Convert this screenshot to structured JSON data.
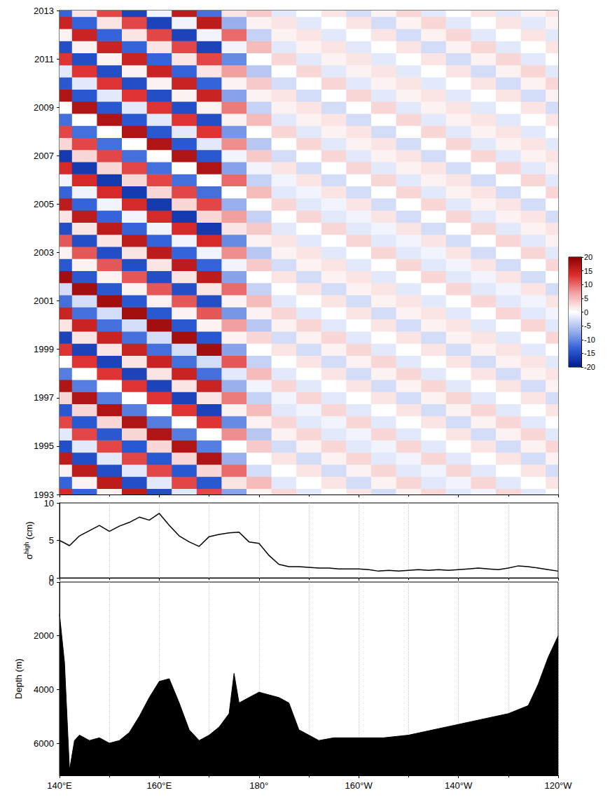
{
  "chart_data": [
    {
      "type": "heatmap",
      "x": [
        140,
        145,
        150,
        155,
        160,
        165,
        170,
        175,
        180,
        185,
        190,
        195,
        200,
        205,
        210,
        215,
        220,
        225,
        230,
        235,
        240
      ],
      "y": [
        1993,
        1993.5,
        1994,
        1994.5,
        1995,
        1995.5,
        1996,
        1996.5,
        1997,
        1997.5,
        1998,
        1998.5,
        1999,
        1999.5,
        2000,
        2000.5,
        2001,
        2001.5,
        2002,
        2002.5,
        2003,
        2003.5,
        2004,
        2004.5,
        2005,
        2005.5,
        2006,
        2006.5,
        2007,
        2007.5,
        2008,
        2008.5,
        2009,
        2009.5,
        2010,
        2010.5,
        2011,
        2011.5,
        2012,
        2012.5,
        2013
      ],
      "values": [
        [
          14,
          -13,
          1,
          16,
          -15,
          -2,
          12,
          -8,
          1,
          3,
          -2,
          0,
          2,
          -3,
          1,
          3,
          -2,
          -1,
          3,
          -2,
          0
        ],
        [
          -13,
          1,
          16,
          -15,
          -2,
          12,
          -14,
          2,
          5,
          -2,
          0,
          2,
          -3,
          1,
          3,
          -2,
          -1,
          3,
          -2,
          0,
          2
        ],
        [
          1,
          16,
          -15,
          -2,
          12,
          -14,
          3,
          10,
          -3,
          0,
          2,
          -3,
          1,
          3,
          -2,
          -1,
          3,
          -2,
          0,
          2,
          -3
        ],
        [
          16,
          -15,
          -2,
          12,
          -14,
          3,
          17,
          -7,
          0,
          2,
          -3,
          1,
          3,
          -2,
          -1,
          3,
          -2,
          0,
          2,
          -3,
          1
        ],
        [
          -15,
          -2,
          12,
          -14,
          3,
          17,
          -11,
          0,
          4,
          -3,
          1,
          3,
          -2,
          -1,
          3,
          -2,
          0,
          2,
          -3,
          1,
          3
        ],
        [
          -2,
          12,
          -14,
          3,
          17,
          -11,
          0,
          8,
          -5,
          1,
          3,
          -2,
          -1,
          3,
          -2,
          0,
          2,
          -3,
          1,
          3,
          -2
        ],
        [
          12,
          -14,
          3,
          17,
          -11,
          0,
          13,
          -10,
          1,
          3,
          -2,
          -1,
          3,
          -2,
          0,
          2,
          -3,
          1,
          3,
          -2,
          0
        ],
        [
          -14,
          3,
          17,
          -11,
          0,
          13,
          -16,
          1,
          5,
          -2,
          -1,
          3,
          -2,
          0,
          2,
          -3,
          1,
          3,
          -2,
          0,
          2
        ],
        [
          3,
          17,
          -11,
          0,
          13,
          -16,
          2,
          9,
          -4,
          -1,
          3,
          -2,
          0,
          2,
          -3,
          1,
          3,
          -2,
          0,
          2,
          -3
        ],
        [
          17,
          -11,
          0,
          13,
          -16,
          2,
          15,
          -7,
          -1,
          3,
          -2,
          0,
          2,
          -3,
          1,
          3,
          -2,
          0,
          2,
          -3,
          1
        ],
        [
          -11,
          0,
          13,
          -16,
          2,
          15,
          -12,
          -2,
          5,
          -2,
          0,
          2,
          -3,
          1,
          3,
          -2,
          0,
          2,
          -3,
          1,
          2
        ],
        [
          0,
          13,
          -16,
          2,
          15,
          -12,
          -3,
          11,
          -4,
          0,
          2,
          -3,
          1,
          3,
          -2,
          0,
          2,
          -3,
          1,
          2,
          -2
        ],
        [
          13,
          -16,
          2,
          15,
          -12,
          -3,
          18,
          -8,
          0,
          2,
          -3,
          1,
          3,
          -2,
          0,
          2,
          -3,
          1,
          2,
          -2,
          0
        ],
        [
          -16,
          2,
          15,
          -12,
          -3,
          18,
          -14,
          1,
          3,
          -3,
          1,
          3,
          -2,
          0,
          2,
          -3,
          1,
          2,
          -2,
          0,
          3
        ],
        [
          2,
          15,
          -12,
          -3,
          18,
          -14,
          1,
          7,
          -5,
          1,
          3,
          -2,
          0,
          2,
          -3,
          1,
          2,
          -2,
          0,
          3,
          -2
        ],
        [
          15,
          -12,
          -3,
          18,
          -14,
          1,
          11,
          -9,
          1,
          3,
          -2,
          0,
          2,
          -3,
          1,
          2,
          -2,
          0,
          3,
          -2,
          -1
        ],
        [
          -12,
          -3,
          18,
          -14,
          1,
          11,
          -15,
          1,
          5,
          -2,
          0,
          2,
          -3,
          1,
          2,
          -2,
          0,
          3,
          -2,
          -1,
          2
        ],
        [
          -3,
          18,
          -14,
          1,
          11,
          -15,
          2,
          10,
          -4,
          0,
          2,
          -3,
          1,
          2,
          -2,
          0,
          3,
          -2,
          -1,
          2,
          -3
        ],
        [
          18,
          -14,
          1,
          11,
          -15,
          2,
          16,
          -8,
          0,
          2,
          -3,
          1,
          2,
          -2,
          0,
          3,
          -2,
          -1,
          2,
          -3,
          0
        ],
        [
          -14,
          1,
          11,
          -15,
          2,
          16,
          -13,
          -1,
          4,
          -3,
          1,
          2,
          -2,
          0,
          3,
          -2,
          -1,
          2,
          -3,
          0,
          3
        ],
        [
          1,
          11,
          -15,
          2,
          16,
          -13,
          -1,
          8,
          -5,
          1,
          2,
          -2,
          0,
          3,
          -2,
          -1,
          2,
          -3,
          0,
          3,
          -2
        ],
        [
          11,
          -15,
          2,
          16,
          -13,
          -1,
          14,
          -10,
          1,
          2,
          -2,
          0,
          3,
          -2,
          -1,
          2,
          -3,
          0,
          3,
          -2,
          1
        ],
        [
          -15,
          2,
          16,
          -13,
          -1,
          14,
          -17,
          2,
          4,
          -2,
          0,
          3,
          -2,
          -1,
          2,
          -3,
          0,
          3,
          -2,
          1,
          2
        ],
        [
          2,
          16,
          -13,
          -1,
          14,
          -17,
          3,
          7,
          -4,
          0,
          3,
          -2,
          -1,
          2,
          -3,
          0,
          3,
          -2,
          1,
          2,
          -3
        ],
        [
          16,
          -13,
          -1,
          14,
          -17,
          3,
          12,
          -7,
          0,
          3,
          -2,
          -1,
          2,
          -3,
          0,
          3,
          -2,
          1,
          2,
          -3,
          0
        ],
        [
          -13,
          -1,
          14,
          -17,
          3,
          12,
          -12,
          0,
          5,
          -2,
          -1,
          2,
          -3,
          0,
          3,
          -2,
          1,
          2,
          -3,
          0,
          3
        ],
        [
          -1,
          14,
          -17,
          3,
          12,
          -12,
          0,
          10,
          -4,
          -1,
          2,
          -3,
          0,
          3,
          -2,
          1,
          2,
          -3,
          0,
          3,
          -2
        ],
        [
          14,
          -17,
          3,
          12,
          -12,
          0,
          17,
          -8,
          -1,
          2,
          -3,
          0,
          3,
          -2,
          1,
          2,
          -3,
          0,
          3,
          -2,
          1
        ],
        [
          -17,
          3,
          12,
          -12,
          0,
          17,
          -14,
          -1,
          4,
          -3,
          0,
          3,
          -2,
          1,
          2,
          -3,
          0,
          3,
          -2,
          1,
          2
        ],
        [
          3,
          12,
          -12,
          0,
          17,
          -14,
          -2,
          8,
          -5,
          0,
          3,
          -2,
          1,
          2,
          -3,
          0,
          3,
          -2,
          1,
          2,
          -2
        ],
        [
          12,
          -12,
          0,
          17,
          -14,
          -2,
          13,
          -9,
          0,
          3,
          -2,
          1,
          2,
          -3,
          0,
          3,
          -2,
          1,
          2,
          -2,
          0
        ],
        [
          -12,
          0,
          17,
          -14,
          -2,
          13,
          -15,
          1,
          5,
          -2,
          1,
          2,
          -3,
          0,
          3,
          -2,
          1,
          2,
          -2,
          0,
          2
        ],
        [
          0,
          17,
          -14,
          -2,
          13,
          -15,
          1,
          9,
          -4,
          1,
          2,
          -3,
          0,
          3,
          -2,
          1,
          2,
          -2,
          0,
          2,
          -3
        ],
        [
          17,
          -14,
          -2,
          13,
          -15,
          1,
          15,
          -8,
          1,
          2,
          -3,
          0,
          3,
          -2,
          1,
          2,
          -2,
          0,
          2,
          -3,
          1
        ],
        [
          -14,
          -2,
          13,
          -15,
          1,
          15,
          -13,
          1,
          4,
          -3,
          0,
          3,
          -2,
          1,
          2,
          -2,
          0,
          2,
          -3,
          1,
          3
        ],
        [
          -2,
          13,
          -15,
          1,
          15,
          -13,
          2,
          7,
          -5,
          0,
          3,
          -2,
          1,
          2,
          -2,
          0,
          2,
          -3,
          1,
          3,
          -2
        ],
        [
          13,
          -15,
          1,
          15,
          -13,
          2,
          12,
          -10,
          0,
          3,
          -2,
          1,
          2,
          -2,
          0,
          2,
          -3,
          1,
          3,
          -2,
          0
        ],
        [
          -15,
          1,
          15,
          -13,
          2,
          12,
          -16,
          -1,
          5,
          -2,
          1,
          2,
          -2,
          0,
          2,
          -3,
          1,
          3,
          -2,
          0,
          2
        ],
        [
          1,
          15,
          -13,
          2,
          12,
          -16,
          -1,
          10,
          -4,
          1,
          2,
          -2,
          0,
          2,
          -3,
          1,
          3,
          -2,
          0,
          2,
          -2
        ],
        [
          15,
          -13,
          2,
          12,
          -16,
          -1,
          16,
          -7,
          1,
          2,
          -2,
          0,
          2,
          -3,
          1,
          3,
          -2,
          0,
          2,
          -2,
          1
        ],
        [
          -13,
          2,
          12,
          -16,
          -1,
          16,
          -12,
          2,
          4,
          -2,
          0,
          2,
          -3,
          1,
          3,
          -2,
          0,
          2,
          -2,
          1,
          2
        ]
      ],
      "xlim": [
        140,
        240
      ],
      "ylim": [
        1993,
        2013
      ],
      "xticks": [
        {
          "value": 140,
          "label": "140°E"
        },
        {
          "value": 160,
          "label": "160°E"
        },
        {
          "value": 180,
          "label": "180°"
        },
        {
          "value": 200,
          "label": "160°W"
        },
        {
          "value": 220,
          "label": "140°W"
        },
        {
          "value": 240,
          "label": "120°W"
        }
      ],
      "yticks": [
        1993,
        1995,
        1997,
        1999,
        2001,
        2003,
        2005,
        2007,
        2009,
        2011,
        2013
      ],
      "tick_labels": "y",
      "colorbar": {
        "range": [
          -20,
          20
        ],
        "ticks": [
          -20,
          -15,
          -10,
          -5,
          0,
          5,
          10,
          15,
          20
        ],
        "colors": [
          "#001a8c",
          "#2f5fd8",
          "#9fb4ee",
          "#ffffff",
          "#f2a6a6",
          "#de2e2e",
          "#8a0000"
        ]
      }
    },
    {
      "type": "line",
      "x": [
        140,
        142,
        144,
        146,
        148,
        150,
        152,
        154,
        156,
        158,
        160,
        162,
        164,
        166,
        168,
        170,
        172,
        174,
        176,
        178,
        180,
        182,
        184,
        186,
        188,
        190,
        192,
        194,
        196,
        198,
        200,
        202,
        204,
        206,
        208,
        210,
        212,
        214,
        216,
        218,
        220,
        222,
        224,
        226,
        228,
        230,
        232,
        234,
        236,
        238,
        240
      ],
      "values": [
        5.0,
        4.3,
        5.6,
        6.3,
        7.0,
        6.2,
        6.9,
        7.4,
        8.1,
        7.7,
        8.6,
        7.0,
        5.6,
        4.8,
        4.2,
        5.5,
        5.8,
        6.0,
        6.1,
        4.8,
        4.6,
        3.0,
        1.8,
        1.5,
        1.5,
        1.4,
        1.3,
        1.3,
        1.2,
        1.2,
        1.2,
        1.1,
        0.9,
        1.0,
        0.9,
        1.0,
        1.1,
        1.0,
        1.1,
        1.0,
        1.1,
        1.2,
        1.3,
        1.2,
        1.1,
        1.3,
        1.6,
        1.5,
        1.3,
        1.1,
        0.9
      ],
      "ylabel": {
        "symbol": "σ",
        "superscript": "high",
        "unit": "(cm)"
      },
      "xlim": [
        140,
        240
      ],
      "ylim": [
        0,
        10
      ],
      "xticks": [
        {
          "value": 140,
          "label": "140°E"
        },
        {
          "value": 160,
          "label": "160°E"
        },
        {
          "value": 180,
          "label": "180°"
        },
        {
          "value": 200,
          "label": "160°W"
        },
        {
          "value": 220,
          "label": "140°W"
        },
        {
          "value": 240,
          "label": "120°W"
        }
      ],
      "yticks": [
        0,
        5,
        10
      ],
      "tick_labels": "y",
      "grid": true,
      "color": "#000000"
    },
    {
      "type": "area",
      "x": [
        140,
        141,
        142,
        143,
        144,
        146,
        148,
        150,
        152,
        154,
        156,
        158,
        160,
        162,
        164,
        166,
        168,
        170,
        172,
        174,
        175,
        176,
        178,
        180,
        182,
        184,
        186,
        188,
        190,
        192,
        195,
        200,
        205,
        210,
        215,
        220,
        225,
        230,
        234,
        236,
        238,
        240
      ],
      "values": [
        1200,
        3000,
        7000,
        5900,
        5700,
        5900,
        5800,
        6000,
        5900,
        5600,
        5000,
        4300,
        3700,
        3600,
        4500,
        5500,
        5900,
        5700,
        5400,
        4900,
        3400,
        4500,
        4300,
        4100,
        4200,
        4300,
        4500,
        5500,
        5700,
        5900,
        5800,
        5800,
        5800,
        5700,
        5500,
        5300,
        5100,
        4900,
        4600,
        3800,
        2800,
        2000
      ],
      "ylabel": "Depth (m)",
      "xlim": [
        140,
        240
      ],
      "ylim": [
        7200,
        0
      ],
      "xticks": [
        {
          "value": 140,
          "label": "140°E"
        },
        {
          "value": 160,
          "label": "160°E"
        },
        {
          "value": 180,
          "label": "180°"
        },
        {
          "value": 200,
          "label": "160°W"
        },
        {
          "value": 220,
          "label": "140°W"
        },
        {
          "value": 240,
          "label": "120°W"
        }
      ],
      "yticks": [
        0,
        2000,
        4000,
        6000
      ],
      "grid": true,
      "color": "#000000"
    }
  ]
}
